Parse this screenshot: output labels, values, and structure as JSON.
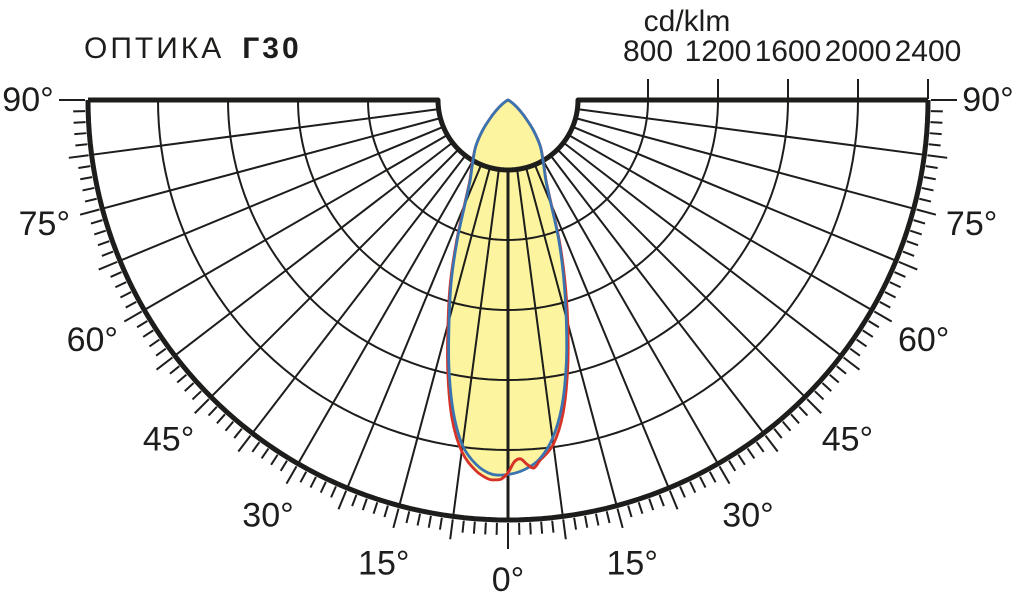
{
  "title": {
    "prefix": "ОПТИКА",
    "code": "Г30"
  },
  "colors": {
    "grid": "#1d1d1b",
    "text": "#1d1d1b",
    "background": "#ffffff",
    "lobe_fill": "#fcf49f",
    "blue_curve": "#3a74b0",
    "red_curve": "#d63228"
  },
  "chart_data": {
    "type": "polar-intensity-distribution",
    "title": "ОПТИКА Г30",
    "units_label": "cd/klm",
    "radial_axis": {
      "min": 0,
      "max": 2400,
      "grid_step": 400,
      "scale_labels": [
        800,
        1200,
        1600,
        2000,
        2400
      ]
    },
    "angle_axis": {
      "min_deg": -90,
      "max_deg": 90,
      "zero_direction": "down",
      "grid_step_deg": 7.5,
      "minor_tick_deg": 1.5,
      "major_tick_deg": 7.5,
      "label_step_deg": 15
    },
    "angle_labels": [
      {
        "angle": -90,
        "text": "90°"
      },
      {
        "angle": -75,
        "text": "75°"
      },
      {
        "angle": -60,
        "text": "60°"
      },
      {
        "angle": -45,
        "text": "45°"
      },
      {
        "angle": -30,
        "text": "30°"
      },
      {
        "angle": -15,
        "text": "15°"
      },
      {
        "angle": 0,
        "text": "0°"
      },
      {
        "angle": 15,
        "text": "15°"
      },
      {
        "angle": 30,
        "text": "30°"
      },
      {
        "angle": 45,
        "text": "45°"
      },
      {
        "angle": 60,
        "text": "60°"
      },
      {
        "angle": 75,
        "text": "75°"
      },
      {
        "angle": 90,
        "text": "90°"
      }
    ],
    "series": [
      {
        "name": "red-curve",
        "color_key": "red_curve",
        "overlay_range_deg": [
          -1.5,
          6.8
        ],
        "points": [
          [
            -63,
            0
          ],
          [
            -60,
            12
          ],
          [
            -55,
            35
          ],
          [
            -50,
            75
          ],
          [
            -45,
            135
          ],
          [
            -40,
            225
          ],
          [
            -35,
            320
          ],
          [
            -30,
            405
          ],
          [
            -27.5,
            455
          ],
          [
            -25,
            522
          ],
          [
            -22.5,
            652
          ],
          [
            -20,
            860
          ],
          [
            -17.5,
            1095
          ],
          [
            -15,
            1325
          ],
          [
            -12.5,
            1590
          ],
          [
            -10,
            1845
          ],
          [
            -7.5,
            2025
          ],
          [
            -5,
            2125
          ],
          [
            -3,
            2168
          ],
          [
            -2,
            2172
          ],
          [
            -1,
            2166
          ],
          [
            0,
            2130
          ],
          [
            1,
            2068
          ],
          [
            2,
            2052
          ],
          [
            3,
            2085
          ],
          [
            4,
            2108
          ],
          [
            5,
            2070
          ],
          [
            7.5,
            1985
          ],
          [
            10,
            1815
          ],
          [
            12.5,
            1575
          ],
          [
            15,
            1320
          ],
          [
            17.5,
            1080
          ],
          [
            20,
            860
          ],
          [
            22.5,
            648
          ],
          [
            25,
            520
          ],
          [
            27.5,
            452
          ],
          [
            30,
            402
          ],
          [
            35,
            322
          ],
          [
            40,
            226
          ],
          [
            45,
            135
          ],
          [
            50,
            75
          ],
          [
            55,
            35
          ],
          [
            60,
            12
          ],
          [
            63,
            0
          ]
        ]
      },
      {
        "name": "blue-curve",
        "color_key": "blue_curve",
        "points": [
          [
            -63,
            0
          ],
          [
            -60,
            12
          ],
          [
            -55,
            35
          ],
          [
            -50,
            75
          ],
          [
            -45,
            135
          ],
          [
            -40,
            225
          ],
          [
            -35,
            320
          ],
          [
            -30,
            400
          ],
          [
            -27.5,
            450
          ],
          [
            -25,
            515
          ],
          [
            -22.5,
            640
          ],
          [
            -20,
            845
          ],
          [
            -17.5,
            1075
          ],
          [
            -15,
            1300
          ],
          [
            -12.5,
            1560
          ],
          [
            -10,
            1805
          ],
          [
            -7.5,
            1990
          ],
          [
            -5,
            2090
          ],
          [
            -2.5,
            2140
          ],
          [
            0,
            2140
          ],
          [
            2.5,
            2115
          ],
          [
            5,
            2060
          ],
          [
            7.5,
            1950
          ],
          [
            10,
            1775
          ],
          [
            12.5,
            1540
          ],
          [
            15,
            1285
          ],
          [
            17.5,
            1055
          ],
          [
            20,
            845
          ],
          [
            22.5,
            640
          ],
          [
            25,
            515
          ],
          [
            27.5,
            450
          ],
          [
            30,
            400
          ],
          [
            35,
            320
          ],
          [
            40,
            225
          ],
          [
            45,
            135
          ],
          [
            50,
            75
          ],
          [
            55,
            35
          ],
          [
            60,
            12
          ],
          [
            63,
            0
          ]
        ]
      }
    ]
  }
}
